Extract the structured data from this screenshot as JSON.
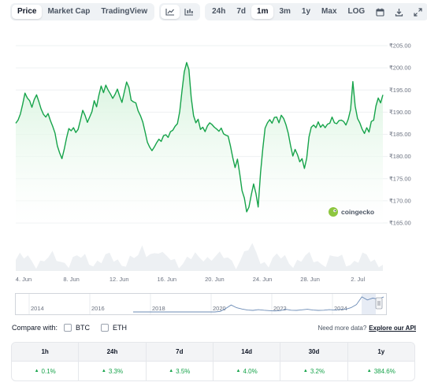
{
  "toolbar": {
    "view_tabs": [
      "Price",
      "Market Cap",
      "TradingView"
    ],
    "active_view": "Price",
    "chart_type_icons": [
      "line-chart-icon",
      "candlestick-chart-icon"
    ],
    "ranges": [
      "24h",
      "7d",
      "1m",
      "3m",
      "1y",
      "Max",
      "LOG"
    ],
    "active_range": "1m",
    "action_icons": [
      "calendar-icon",
      "download-icon",
      "expand-icon"
    ]
  },
  "brand": {
    "name": "coingecko",
    "color": "#8dc63f"
  },
  "colors": {
    "line": "#16a34a",
    "area_top": "#d3f2da",
    "volume": "#edf0f3",
    "navigator_line": "#6b8bb6"
  },
  "chart_data": {
    "type": "area",
    "title": "",
    "xlabel": "",
    "ylabel": "",
    "currency": "₹",
    "y_ticks": [
      "₹205.00",
      "₹200.00",
      "₹195.00",
      "₹190.00",
      "₹185.00",
      "₹180.00",
      "₹175.00",
      "₹170.00",
      "₹165.00"
    ],
    "ylim": [
      165,
      205
    ],
    "x_ticks": [
      "4. Jun",
      "8. Jun",
      "12. Jun",
      "16. Jun",
      "20. Jun",
      "24. Jun",
      "28. Jun",
      "2. Jul"
    ],
    "series": [
      {
        "values": [
          187.5,
          188.2,
          189.6,
          191.8,
          194.3,
          193.2,
          192.6,
          191.1,
          192.8,
          193.9,
          192.4,
          190.7,
          189.5,
          188.9,
          189.7,
          188.1,
          186.8,
          185.3,
          182.4,
          180.8,
          179.5,
          181.6,
          184.2,
          186.3,
          185.8,
          186.5,
          185.4,
          186.1,
          188.2,
          190.4,
          189.3,
          187.7,
          188.9,
          190.1,
          192.6,
          191.2,
          193.8,
          195.9,
          194.4,
          196.1,
          195.0,
          194.1,
          193.1,
          194.0,
          195.2,
          193.6,
          192.2,
          194.5,
          196.8,
          195.6,
          192.7,
          192.3,
          192.1,
          190.3,
          189.2,
          187.8,
          185.6,
          183.2,
          182.1,
          181.3,
          182.1,
          183.1,
          183.9,
          183.4,
          184.7,
          184.9,
          184.3,
          185.6,
          185.9,
          186.8,
          187.4,
          190.1,
          194.8,
          199.1,
          201.2,
          199.6,
          193.3,
          189.2,
          187.6,
          188.4,
          186.1,
          186.6,
          185.6,
          186.9,
          187.6,
          187.2,
          186.6,
          186.2,
          185.7,
          186.4,
          185.1,
          184.8,
          184.6,
          182.3,
          179.7,
          177.5,
          179.4,
          176.1,
          172.3,
          170.6,
          167.5,
          168.6,
          171.3,
          173.8,
          171.7,
          168.6,
          176.3,
          181.8,
          186.4,
          187.6,
          188.3,
          187.5,
          188.8,
          188.9,
          187.6,
          189.3,
          188.6,
          187.2,
          185.3,
          182.5,
          180.1,
          181.6,
          180.4,
          178.8,
          179.5,
          177.3,
          179.6,
          184.4,
          186.6,
          187.1,
          186.5,
          187.8,
          186.6,
          187.2,
          186.5,
          187.3,
          187.5,
          188.9,
          187.6,
          187.4,
          188.1,
          188.2,
          187.9,
          187.1,
          188.4,
          190.6,
          196.9,
          191.4,
          188.6,
          187.6,
          186.2,
          185.2,
          186.5,
          185.5,
          187.9,
          188.2,
          191.4,
          193.2,
          192.1,
          193.9
        ]
      }
    ],
    "grid": true,
    "legend": "none"
  },
  "navigator": {
    "year_labels": [
      "2014",
      "2016",
      "2018",
      "2020",
      "2022",
      "2024"
    ],
    "values": [
      0,
      0,
      0,
      0,
      0,
      0,
      0,
      0,
      0,
      0,
      0,
      0,
      0,
      0,
      0,
      0,
      0.3,
      1.8,
      3.6,
      2.2,
      1.5,
      1.0,
      0.8,
      1.2,
      0.9,
      0.7,
      0.5,
      0.7,
      1.4,
      0.9,
      0.8,
      1.1,
      1.4,
      1.0,
      0.8,
      0.9,
      1.2,
      1.0,
      1.3,
      1.4,
      2.2,
      3.8,
      7.8,
      6.2,
      7.2,
      6.6,
      7.8
    ]
  },
  "compare": {
    "label": "Compare with:",
    "options": [
      "BTC",
      "ETH"
    ],
    "api_text": "Need more data?",
    "api_link": "Explore our API"
  },
  "performance": {
    "headers": [
      "1h",
      "24h",
      "7d",
      "14d",
      "30d",
      "1y"
    ],
    "values": [
      "0.1%",
      "3.3%",
      "3.5%",
      "4.0%",
      "3.2%",
      "384.6%"
    ],
    "direction": "up",
    "positive_color": "#16a34a"
  }
}
